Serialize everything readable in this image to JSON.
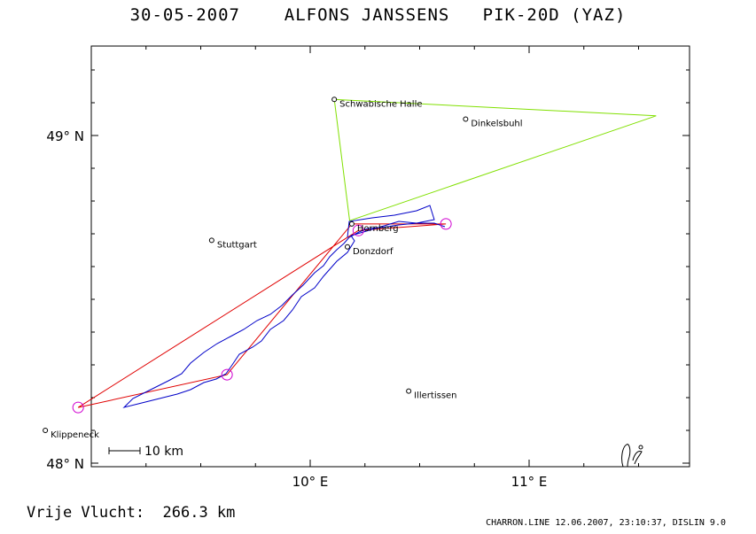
{
  "header": {
    "date": "30-05-2007",
    "pilot": "ALFONS JANSSENS",
    "glider": "PIK-20D (YAZ)"
  },
  "axes": {
    "lat_labels": [
      {
        "text": "49° N",
        "lat": 49.0
      },
      {
        "text": "48° N",
        "lat": 48.0
      }
    ],
    "lon_labels": [
      {
        "text": "10° E",
        "lon": 10.0
      },
      {
        "text": "11° E",
        "lon": 11.0
      }
    ]
  },
  "places": [
    {
      "name": "Schwabische Halle",
      "lon": 10.11,
      "lat": 49.11
    },
    {
      "name": "Dinkelsbuhl",
      "lon": 10.71,
      "lat": 49.05
    },
    {
      "name": "Stuttgart",
      "lon": 9.55,
      "lat": 48.68
    },
    {
      "name": "Hornberg",
      "lon": 10.19,
      "lat": 48.73
    },
    {
      "name": "Donzdorf",
      "lon": 10.17,
      "lat": 48.66
    },
    {
      "name": "Illertissen",
      "lon": 10.45,
      "lat": 48.22
    },
    {
      "name": "Klippeneck",
      "lon": 8.79,
      "lat": 48.1
    }
  ],
  "scale_bar": {
    "label": "10 km"
  },
  "declared_task": [
    {
      "lon": 10.18,
      "lat": 48.74
    },
    {
      "lon": 10.11,
      "lat": 49.11
    },
    {
      "lon": 11.58,
      "lat": 49.06
    },
    {
      "lon": 10.18,
      "lat": 48.74
    }
  ],
  "flown_triangle": [
    {
      "lon": 10.22,
      "lat": 48.71
    },
    {
      "lon": 10.62,
      "lat": 48.73
    },
    {
      "lon": 10.19,
      "lat": 48.73
    },
    {
      "lon": 9.62,
      "lat": 48.27
    },
    {
      "lon": 8.94,
      "lat": 48.17
    },
    {
      "lon": 10.22,
      "lat": 48.71
    }
  ],
  "turnpoint_circles": [
    {
      "lon": 10.62,
      "lat": 48.73
    },
    {
      "lon": 9.62,
      "lat": 48.27
    },
    {
      "lon": 8.94,
      "lat": 48.17
    },
    {
      "lon": 10.22,
      "lat": 48.71
    }
  ],
  "colors": {
    "task": "#80e000",
    "triangle": "#e00000",
    "track": "#0000c8",
    "turnpoint": "#d000d0"
  },
  "footer": {
    "distance": "Vrije Vlucht:  266.3 km",
    "file_info": "CHARRON.LINE 12.06.2007, 23:10:37, DISLIN 9.0"
  }
}
